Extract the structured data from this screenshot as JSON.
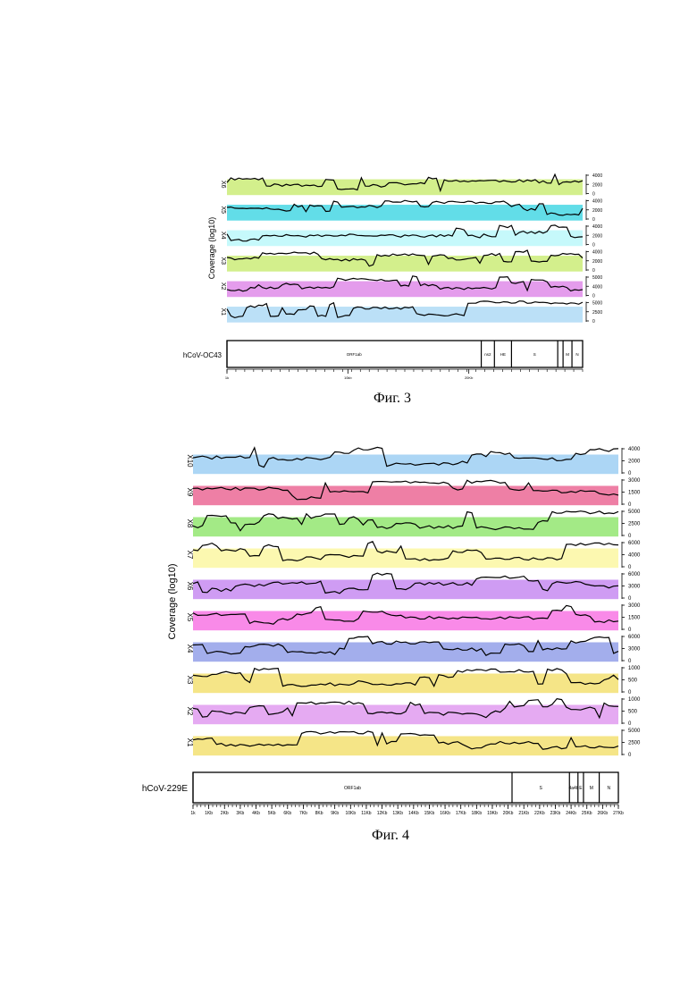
{
  "chart_data": [
    {
      "type": "area",
      "ylabel": "Coverage (log10)",
      "genome_label": "hCoV-OC43",
      "caption": "Фиг. 3",
      "tracks": [
        {
          "name": "X6",
          "color": "#d3ef8c",
          "ticks": [
            "4000",
            "2000",
            "0"
          ],
          "seed": 11
        },
        {
          "name": "X5",
          "color": "#62dde8",
          "ticks": [
            "4000",
            "2000",
            "0"
          ],
          "seed": 23
        },
        {
          "name": "X4",
          "color": "#c6f9fb",
          "ticks": [
            "4000",
            "2000",
            "0"
          ],
          "seed": 37
        },
        {
          "name": "X3",
          "color": "#d3ef8c",
          "ticks": [
            "4000",
            "2000",
            "0"
          ],
          "seed": 41
        },
        {
          "name": "X2",
          "color": "#e49cec",
          "ticks": [
            "5000",
            "4000",
            "0"
          ],
          "seed": 53
        },
        {
          "name": "X1",
          "color": "#bbe0f7",
          "ticks": [
            "5000",
            "2500",
            "0"
          ],
          "seed": 67
        }
      ],
      "genes": [
        {
          "label": "ORF1ab",
          "start": 0.0,
          "end": 0.715
        },
        {
          "label": "ns2",
          "start": 0.715,
          "end": 0.752
        },
        {
          "label": "HE",
          "start": 0.752,
          "end": 0.8
        },
        {
          "label": "S",
          "start": 0.8,
          "end": 0.93
        },
        {
          "label": "",
          "start": 0.93,
          "end": 0.945
        },
        {
          "label": "M",
          "start": 0.945,
          "end": 0.97
        },
        {
          "label": "N",
          "start": 0.97,
          "end": 1.0
        }
      ],
      "xticks": [
        "1k",
        "10kb",
        "20Kb"
      ]
    },
    {
      "type": "area",
      "ylabel": "Coverage (log10)",
      "genome_label": "hCoV-229E",
      "caption": "Фиг. 4",
      "tracks": [
        {
          "name": "X10",
          "color": "#acd6f5",
          "ticks": [
            "4000",
            "2000",
            "0"
          ],
          "seed": 71
        },
        {
          "name": "X9",
          "color": "#ee7fa5",
          "ticks": [
            "3000",
            "1500",
            "0"
          ],
          "seed": 83
        },
        {
          "name": "X8",
          "color": "#a3ea86",
          "ticks": [
            "5000",
            "2500",
            "0"
          ],
          "seed": 97
        },
        {
          "name": "X7",
          "color": "#fcf8b0",
          "ticks": [
            "6000",
            "4000",
            "0"
          ],
          "seed": 101
        },
        {
          "name": "X6",
          "color": "#cf9cf3",
          "ticks": [
            "6000",
            "3000",
            "0"
          ],
          "seed": 113
        },
        {
          "name": "X5",
          "color": "#f98ae8",
          "ticks": [
            "3000",
            "1500",
            "0"
          ],
          "seed": 127
        },
        {
          "name": "X4",
          "color": "#a3aeec",
          "ticks": [
            "6000",
            "3000",
            "0"
          ],
          "seed": 131
        },
        {
          "name": "X3",
          "color": "#f5e587",
          "ticks": [
            "1000",
            "500",
            "0"
          ],
          "seed": 149
        },
        {
          "name": "X2",
          "color": "#e5aaf2",
          "ticks": [
            "1000",
            "500",
            "0"
          ],
          "seed": 157
        },
        {
          "name": "X1",
          "color": "#f5e587",
          "ticks": [
            "5000",
            "2500",
            "0"
          ],
          "seed": 163
        }
      ],
      "genes": [
        {
          "label": "ORF1ab",
          "start": 0.0,
          "end": 0.75
        },
        {
          "label": "S",
          "start": 0.75,
          "end": 0.885
        },
        {
          "label": "4a4b",
          "start": 0.885,
          "end": 0.905
        },
        {
          "label": "E",
          "start": 0.905,
          "end": 0.918
        },
        {
          "label": "M",
          "start": 0.918,
          "end": 0.955
        },
        {
          "label": "N",
          "start": 0.955,
          "end": 1.0
        }
      ],
      "xticks": [
        "1k",
        "1Kb",
        "2Kb",
        "3Kb",
        "4Kb",
        "5Kb",
        "6Kb",
        "7Kb",
        "8Kb",
        "9Kb",
        "10Kb",
        "11Kb",
        "12Kb",
        "13Kb",
        "14Kb",
        "15Kb",
        "16Kb",
        "17Kb",
        "18Kb",
        "19Kb",
        "20Kb",
        "21Kb",
        "22Kb",
        "23Kb",
        "24Kb",
        "25Kb",
        "26Kb",
        "27Kb"
      ]
    }
  ]
}
